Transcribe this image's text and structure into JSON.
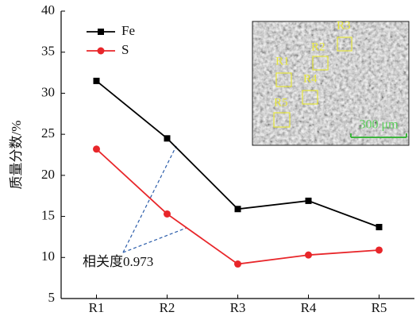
{
  "chart_data": {
    "type": "line",
    "y_label": "质量分数/%",
    "categories": [
      "R1",
      "R2",
      "R3",
      "R4",
      "R5"
    ],
    "series": [
      {
        "name": "Fe",
        "color": "#000000",
        "marker": "square",
        "values": [
          31.5,
          24.5,
          15.9,
          16.9,
          13.7
        ]
      },
      {
        "name": "S",
        "color": "#e8262a",
        "marker": "circle",
        "values": [
          23.2,
          15.3,
          9.2,
          10.3,
          10.9
        ]
      }
    ],
    "ylim": [
      5,
      40
    ],
    "yticks": [
      5,
      10,
      15,
      20,
      25,
      30,
      35,
      40
    ],
    "legend": "upper left",
    "annotation": "相关度0.973",
    "inset": {
      "labels": [
        "R1",
        "R2",
        "R3",
        "R4",
        "R5"
      ],
      "scale_bar": "300 μm"
    }
  }
}
